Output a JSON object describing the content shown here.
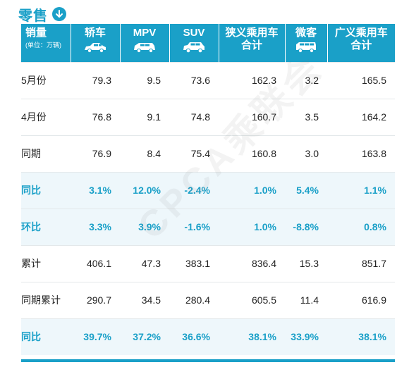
{
  "title": "零售",
  "table": {
    "header": {
      "metric": "销量",
      "unit": "(单位：万辆)",
      "columns": [
        {
          "line1": "轿车",
          "line2": "",
          "icon": "sedan-icon"
        },
        {
          "line1": "MPV",
          "line2": "",
          "icon": "mpv-icon"
        },
        {
          "line1": "SUV",
          "line2": "",
          "icon": "suv-icon"
        },
        {
          "line1": "狭义乘用车",
          "line2": "合计",
          "icon": ""
        },
        {
          "line1": "微客",
          "line2": "",
          "icon": "minivan-icon"
        },
        {
          "line1": "广义乘用车",
          "line2": "合计",
          "icon": ""
        }
      ]
    },
    "rows": [
      {
        "label": "5月份",
        "type": "value",
        "values": [
          "79.3",
          "9.5",
          "73.6",
          "162.3",
          "3.2",
          "165.5"
        ]
      },
      {
        "label": "4月份",
        "type": "value",
        "values": [
          "76.8",
          "9.1",
          "74.8",
          "160.7",
          "3.5",
          "164.2"
        ]
      },
      {
        "label": "同期",
        "type": "value",
        "values": [
          "76.9",
          "8.4",
          "75.4",
          "160.8",
          "3.0",
          "163.8"
        ]
      },
      {
        "label": "同比",
        "type": "pct",
        "values": [
          "3.1%",
          "12.0%",
          "-2.4%",
          "1.0%",
          "5.4%",
          "1.1%"
        ]
      },
      {
        "label": "环比",
        "type": "pct",
        "values": [
          "3.3%",
          "3.9%",
          "-1.6%",
          "1.0%",
          "-8.8%",
          "0.8%"
        ]
      },
      {
        "label": "累计",
        "type": "value",
        "values": [
          "406.1",
          "47.3",
          "383.1",
          "836.4",
          "15.3",
          "851.7"
        ]
      },
      {
        "label": "同期累计",
        "type": "value",
        "values": [
          "290.7",
          "34.5",
          "280.4",
          "605.5",
          "11.4",
          "616.9"
        ]
      },
      {
        "label": "同比",
        "type": "pct",
        "values": [
          "39.7%",
          "37.2%",
          "36.6%",
          "38.1%",
          "33.9%",
          "38.1%"
        ]
      }
    ]
  },
  "watermark": "CPCA乘联会",
  "colors": {
    "accent": "#1aa0c8",
    "pct_row_bg": "#eef7fb",
    "text": "#222222"
  }
}
